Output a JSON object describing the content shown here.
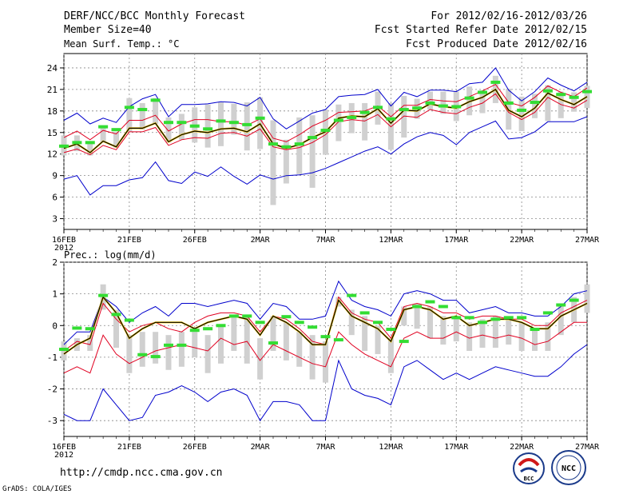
{
  "header": {
    "title": "DERF/NCC/BCC Monthly Forecast",
    "member_size": "Member Size=40",
    "period": "For 2012/02/16-2012/03/26",
    "fcst_started": "Fcst Started Refer Date 2012/02/15",
    "fcst_produced": "Fcst Produced Date 2012/02/16"
  },
  "footer": {
    "url": "http://cmdp.ncc.cma.gov.cn",
    "grads": "GrADS: COLA/IGES",
    "logo_bcc": "BCC",
    "logo_ncc": "NCC"
  },
  "colors": {
    "envelope": "#0000cc",
    "spread": "#e00020",
    "mean": "#000000",
    "obs": "#33dd33",
    "box": "#d0d0d0",
    "median": "#ffd000",
    "grid": "#888888"
  },
  "chart_data": [
    {
      "type": "line",
      "title": "Mean Surf. Temp.: °C",
      "xlabel": "",
      "ylabel": "°C",
      "ylim": [
        1.5,
        26
      ],
      "yticks": [
        3,
        6,
        9,
        12,
        15,
        18,
        21,
        24
      ],
      "x_ticks": [
        {
          "day": 1,
          "label": "16FEB",
          "sub": "2012"
        },
        {
          "day": 6,
          "label": "21FEB"
        },
        {
          "day": 11,
          "label": "26FEB"
        },
        {
          "day": 16,
          "label": "2MAR"
        },
        {
          "day": 21,
          "label": "7MAR"
        },
        {
          "day": 26,
          "label": "12MAR"
        },
        {
          "day": 31,
          "label": "17MAR"
        },
        {
          "day": 36,
          "label": "22MAR"
        },
        {
          "day": 41,
          "label": "27MAR"
        }
      ],
      "xlim": [
        1,
        41
      ],
      "series": [
        {
          "name": "max",
          "values": [
            16.7,
            17.7,
            16.2,
            17.0,
            16.4,
            18.6,
            19.7,
            20.3,
            17.2,
            18.9,
            18.9,
            19.0,
            19.3,
            19.2,
            18.7,
            19.9,
            16.9,
            15.5,
            16.6,
            17.7,
            18.2,
            20.0,
            20.2,
            20.3,
            21.0,
            18.7,
            20.6,
            20.0,
            20.9,
            20.9,
            20.7,
            21.8,
            22.0,
            24.0,
            20.9,
            19.4,
            20.7,
            22.6,
            21.6,
            20.8,
            22.0
          ]
        },
        {
          "name": "spread_upper",
          "values": [
            14.3,
            15.2,
            14.0,
            15.3,
            14.8,
            16.7,
            16.7,
            17.4,
            15.2,
            16.2,
            16.8,
            16.8,
            16.5,
            16.5,
            16.0,
            16.9,
            14.2,
            13.7,
            14.7,
            15.9,
            16.7,
            17.8,
            17.9,
            18.0,
            18.7,
            17.2,
            18.8,
            18.8,
            19.6,
            19.4,
            19.3,
            20.0,
            20.8,
            21.7,
            19.2,
            18.7,
            19.9,
            21.5,
            20.6,
            20.0,
            21.2
          ]
        },
        {
          "name": "mean",
          "values": [
            12.8,
            13.4,
            12.2,
            13.8,
            13.0,
            15.6,
            15.6,
            16.3,
            13.7,
            14.7,
            15.2,
            15.0,
            15.5,
            15.6,
            15.1,
            16.2,
            13.4,
            12.8,
            13.3,
            14.3,
            15.1,
            17.0,
            17.3,
            17.2,
            18.3,
            16.3,
            18.1,
            18.0,
            19.0,
            18.6,
            18.4,
            19.3,
            19.9,
            21.0,
            18.1,
            17.2,
            18.4,
            20.5,
            19.6,
            18.9,
            20.0
          ]
        },
        {
          "name": "spread_lower",
          "values": [
            12.2,
            12.7,
            11.9,
            13.2,
            12.6,
            15.1,
            15.1,
            15.7,
            13.2,
            14.0,
            14.3,
            14.2,
            14.9,
            15.0,
            14.5,
            15.5,
            13.0,
            12.6,
            12.9,
            13.6,
            14.7,
            16.5,
            16.8,
            16.6,
            17.5,
            15.8,
            17.3,
            17.1,
            18.2,
            17.8,
            17.6,
            18.5,
            19.1,
            20.4,
            17.8,
            16.8,
            17.8,
            19.9,
            18.9,
            18.4,
            19.5
          ]
        },
        {
          "name": "min",
          "values": [
            8.5,
            9.0,
            6.3,
            7.6,
            7.6,
            8.4,
            8.7,
            10.9,
            8.3,
            7.9,
            9.5,
            8.9,
            10.2,
            8.9,
            7.8,
            9.1,
            8.5,
            9.0,
            9.1,
            9.4,
            10.0,
            10.8,
            11.6,
            12.4,
            13.0,
            12.0,
            13.4,
            14.4,
            15.0,
            14.6,
            13.3,
            15.0,
            15.8,
            16.6,
            14.1,
            14.3,
            15.1,
            16.5,
            16.5,
            16.5,
            17.2
          ]
        },
        {
          "name": "obs",
          "values": [
            13.1,
            13.6,
            13.6,
            15.8,
            15.4,
            18.5,
            18.2,
            19.5,
            16.4,
            16.4,
            15.9,
            15.5,
            16.6,
            16.4,
            16.1,
            17.0,
            13.4,
            13.0,
            13.4,
            14.3,
            15.3,
            16.7,
            17.1,
            17.8,
            18.5,
            16.9,
            18.2,
            18.4,
            19.1,
            18.7,
            18.6,
            19.8,
            20.6,
            22.0,
            19.1,
            18.1,
            19.2,
            20.8,
            20.3,
            19.9,
            20.7
          ]
        },
        {
          "name": "box_high",
          "values": [
            14.6,
            14.6,
            13.7,
            15.6,
            15.1,
            19.8,
            19.1,
            19.8,
            17.1,
            17.6,
            18.5,
            18.9,
            19.2,
            19.0,
            19.2,
            19.9,
            16.7,
            14.0,
            17.1,
            17.4,
            18.2,
            18.9,
            19.1,
            19.1,
            20.7,
            19.1,
            20.1,
            19.7,
            20.7,
            20.7,
            20.7,
            21.4,
            20.9,
            22.9,
            21.1,
            20.0,
            20.4,
            21.6,
            20.7,
            20.6,
            21.5
          ]
        },
        {
          "name": "box_low",
          "values": [
            11.8,
            12.4,
            11.8,
            13.6,
            12.9,
            15.1,
            15.4,
            16.2,
            13.6,
            14.0,
            13.6,
            12.9,
            13.1,
            14.7,
            12.5,
            12.7,
            4.9,
            7.9,
            9.2,
            7.3,
            11.9,
            13.8,
            14.9,
            13.9,
            16.1,
            12.6,
            14.3,
            16.9,
            18.2,
            17.6,
            16.6,
            17.4,
            17.7,
            19.1,
            15.4,
            15.2,
            17.0,
            16.6,
            17.0,
            17.9,
            18.4
          ]
        }
      ]
    },
    {
      "type": "line",
      "title": "Prec.: log(mm/d)",
      "xlabel": "",
      "ylabel": "log(mm/d)",
      "ylim": [
        -3.5,
        2
      ],
      "yticks": [
        -3,
        -2,
        -1,
        0,
        1,
        2
      ],
      "x_ticks": [
        {
          "day": 1,
          "label": "16FEB",
          "sub": "2012"
        },
        {
          "day": 6,
          "label": "21FEB"
        },
        {
          "day": 11,
          "label": "26FEB"
        },
        {
          "day": 16,
          "label": "2MAR"
        },
        {
          "day": 21,
          "label": "7MAR"
        },
        {
          "day": 26,
          "label": "12MAR"
        },
        {
          "day": 31,
          "label": "17MAR"
        },
        {
          "day": 36,
          "label": "22MAR"
        },
        {
          "day": 41,
          "label": "27MAR"
        }
      ],
      "xlim": [
        1,
        41
      ],
      "series": [
        {
          "name": "max",
          "values": [
            -0.6,
            -0.2,
            -0.2,
            0.9,
            0.6,
            0.1,
            0.4,
            0.6,
            0.3,
            0.7,
            0.7,
            0.6,
            0.7,
            0.8,
            0.7,
            0.2,
            0.7,
            0.6,
            0.2,
            0.2,
            0.3,
            1.4,
            0.8,
            0.6,
            0.5,
            0.3,
            1.0,
            1.1,
            1.0,
            0.8,
            0.8,
            0.4,
            0.5,
            0.6,
            0.4,
            0.4,
            0.3,
            0.3,
            0.6,
            1.0,
            1.1
          ]
        },
        {
          "name": "spread_upper",
          "values": [
            -0.8,
            -0.5,
            -0.6,
            0.7,
            0.2,
            -0.2,
            0.0,
            0.1,
            -0.1,
            -0.2,
            0.1,
            0.3,
            0.4,
            0.4,
            0.3,
            -0.2,
            0.3,
            0.2,
            -0.1,
            -0.5,
            -0.6,
            0.9,
            0.4,
            0.2,
            0.1,
            -0.4,
            0.6,
            0.7,
            0.6,
            0.4,
            0.4,
            0.2,
            0.3,
            0.3,
            0.2,
            0.2,
            0.0,
            0.0,
            0.4,
            0.6,
            0.8
          ]
        },
        {
          "name": "mean",
          "values": [
            -0.9,
            -0.6,
            -0.4,
            0.9,
            0.4,
            -0.4,
            -0.1,
            0.1,
            0.1,
            0.1,
            -0.1,
            0.1,
            0.2,
            0.3,
            0.2,
            -0.3,
            0.3,
            0.1,
            -0.2,
            -0.6,
            -0.6,
            0.8,
            0.3,
            0.1,
            -0.1,
            -0.5,
            0.5,
            0.6,
            0.5,
            0.2,
            0.3,
            0.0,
            0.1,
            0.2,
            0.2,
            0.1,
            -0.1,
            -0.1,
            0.3,
            0.5,
            0.7
          ]
        },
        {
          "name": "spread_lower",
          "values": [
            -1.5,
            -1.3,
            -1.5,
            -0.3,
            -0.9,
            -1.2,
            -1.0,
            -0.8,
            -0.7,
            -0.6,
            -0.7,
            -0.8,
            -0.4,
            -0.6,
            -0.5,
            -1.1,
            -0.6,
            -0.8,
            -1.0,
            -1.2,
            -1.3,
            -0.2,
            -0.6,
            -0.9,
            -1.1,
            -1.3,
            -0.4,
            -0.2,
            -0.4,
            -0.4,
            -0.2,
            -0.4,
            -0.3,
            -0.4,
            -0.3,
            -0.4,
            -0.6,
            -0.5,
            -0.2,
            0.1,
            0.1
          ]
        },
        {
          "name": "min",
          "values": [
            -2.8,
            -3.0,
            -3.0,
            -2.0,
            -2.5,
            -3.0,
            -2.9,
            -2.2,
            -2.1,
            -1.9,
            -2.1,
            -2.4,
            -2.1,
            -2.0,
            -2.2,
            -3.0,
            -2.4,
            -2.4,
            -2.5,
            -3.0,
            -3.0,
            -1.1,
            -2.0,
            -2.2,
            -2.3,
            -2.5,
            -1.3,
            -1.1,
            -1.4,
            -1.7,
            -1.5,
            -1.7,
            -1.5,
            -1.3,
            -1.4,
            -1.5,
            -1.6,
            -1.6,
            -1.3,
            -0.9,
            -0.6
          ]
        },
        {
          "name": "obs",
          "values": [
            -0.75,
            -0.08,
            -0.1,
            0.95,
            0.35,
            0.17,
            -0.92,
            -0.98,
            -0.62,
            -0.62,
            -0.15,
            -0.1,
            0.0,
            0.3,
            0.3,
            0.1,
            -0.55,
            0.28,
            0.1,
            -0.05,
            -0.35,
            -0.45,
            0.95,
            0.4,
            0.1,
            -0.12,
            -0.5,
            0.6,
            0.75,
            0.6,
            0.25,
            0.25,
            0.1,
            0.2,
            0.25,
            0.25,
            -0.12,
            0.4,
            0.65,
            0.8
          ]
        },
        {
          "name": "box_high",
          "values": [
            -0.5,
            -0.4,
            -0.3,
            1.3,
            0.5,
            -0.3,
            -0.2,
            -0.2,
            -0.3,
            -0.2,
            -0.2,
            -0.3,
            0.0,
            0.3,
            0.3,
            -0.4,
            0.3,
            0.1,
            -0.2,
            -0.3,
            -0.5,
            0.9,
            0.5,
            0.3,
            0.0,
            -0.4,
            0.6,
            0.7,
            0.6,
            0.3,
            0.3,
            0.1,
            0.2,
            0.3,
            0.2,
            0.1,
            -0.1,
            0.1,
            0.6,
            0.9,
            1.3
          ]
        },
        {
          "name": "box_low",
          "values": [
            -1.1,
            -0.8,
            -0.8,
            0.5,
            -0.7,
            -1.5,
            -1.3,
            -1.2,
            -1.4,
            -1.3,
            -1.0,
            -1.5,
            -1.2,
            -0.8,
            -1.2,
            -1.7,
            -0.8,
            -1.1,
            -1.3,
            -1.7,
            -1.8,
            0.6,
            -0.3,
            -0.8,
            -0.9,
            -1.5,
            0.0,
            -0.1,
            -0.4,
            -0.6,
            -0.5,
            -0.8,
            -0.7,
            -0.7,
            -0.6,
            -0.8,
            -0.8,
            -0.8,
            -0.3,
            0.1,
            0.4
          ]
        }
      ]
    }
  ]
}
